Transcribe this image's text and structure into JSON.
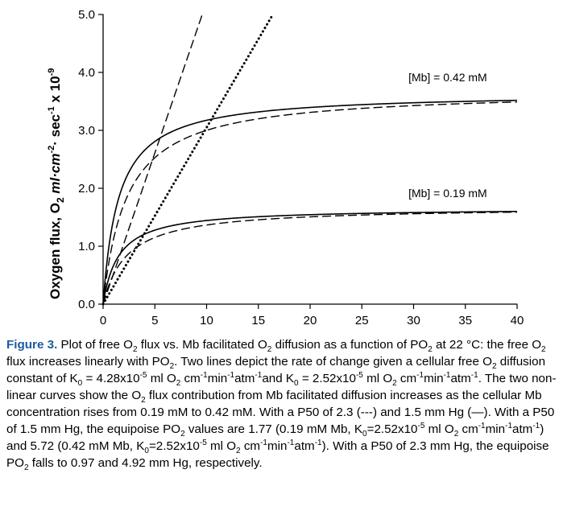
{
  "chart_data": {
    "type": "line",
    "xlabel": "",
    "ylabel": "Oxygen flux,  O2 ml·cm-2· sec-1  x 10-9",
    "ylabel_parts": {
      "main": "Oxygen flux,  O",
      "sub_2": "2",
      "italic_unit": " ml·cm",
      "sup_cm": "-2",
      "sec": "· sec",
      "sup_sec": "-1",
      "times": "  x 10",
      "sup_exp": "-9"
    },
    "xlim": [
      0,
      40
    ],
    "ylim": [
      0,
      5
    ],
    "x_ticks": [
      0,
      5,
      10,
      15,
      20,
      25,
      30,
      35,
      40
    ],
    "x_tick_labels": [
      "0",
      "5",
      "10",
      "15",
      "20",
      "25",
      "30",
      "35",
      "40"
    ],
    "y_ticks": [
      0,
      1,
      2,
      3,
      4,
      5
    ],
    "y_tick_labels": [
      "0.0",
      "1.0",
      "2.0",
      "3.0",
      "4.0",
      "5.0"
    ],
    "grid": false,
    "annotations": [
      {
        "text": "[Mb] = 0.42 mM",
        "x": 29.5,
        "y": 3.85
      },
      {
        "text": "[Mb] = 0.19 mM",
        "x": 29.5,
        "y": 1.85
      }
    ],
    "series": [
      {
        "style": "dashed",
        "kind": "linear",
        "slope": 0.522,
        "x": [
          0,
          9.58
        ],
        "y": [
          0,
          5.0
        ]
      },
      {
        "style": "dotted",
        "kind": "linear",
        "slope": 0.305,
        "x": [
          0,
          16.4
        ],
        "y": [
          0,
          5.0
        ]
      },
      {
        "style": "solid",
        "kind": "hyperbolic",
        "vmax": 3.65,
        "p50": 1.5,
        "mb": 0.42
      },
      {
        "style": "dashed",
        "kind": "hyperbolic",
        "vmax": 3.69,
        "p50": 2.3,
        "mb": 0.42
      },
      {
        "style": "solid",
        "kind": "hyperbolic",
        "vmax": 1.66,
        "p50": 1.5,
        "mb": 0.19
      },
      {
        "style": "dashed",
        "kind": "hyperbolic",
        "vmax": 1.68,
        "p50": 2.3,
        "mb": 0.19
      }
    ]
  },
  "caption": {
    "fig_label": "Figure 3.",
    "segments": [
      {
        "t": " Plot of free O"
      },
      {
        "sub": "2"
      },
      {
        "t": " flux vs. Mb facilitated O"
      },
      {
        "sub": "2"
      },
      {
        "t": " diffusion as a function of PO"
      },
      {
        "sub": "2"
      },
      {
        "t": " at 22 °C:  the free O"
      },
      {
        "sub": "2"
      },
      {
        "t": " flux increases linearly with PO"
      },
      {
        "sub": "2"
      },
      {
        "t": ".  Two lines depict the rate of change given a cellular free O"
      },
      {
        "sub": "2"
      },
      {
        "t": " diffusion constant of K"
      },
      {
        "sub": "0"
      },
      {
        "t": " = 4.28x10"
      },
      {
        "sup": "-5"
      },
      {
        "t": " ml O"
      },
      {
        "sub": "2"
      },
      {
        "t": " cm"
      },
      {
        "sup": "-1"
      },
      {
        "t": "min"
      },
      {
        "sup": "-1"
      },
      {
        "t": "atm"
      },
      {
        "sup": "-1"
      },
      {
        "t": "and K"
      },
      {
        "sub": "0"
      },
      {
        "t": " = 2.52x10"
      },
      {
        "sup": "-5"
      },
      {
        "t": " ml O"
      },
      {
        "sub": "2"
      },
      {
        "t": " cm"
      },
      {
        "sup": "-1"
      },
      {
        "t": "min"
      },
      {
        "sup": "-1"
      },
      {
        "t": "atm"
      },
      {
        "sup": "-1"
      },
      {
        "t": ".  The two non-linear curves show the O"
      },
      {
        "sub": "2"
      },
      {
        "t": " flux contribution from Mb facilitated diffusion increases as the cellular Mb concentration rises from 0.19 mM to 0.42 mM.  With a P50 of  2.3 (---) and 1.5 mm Hg (—).  With a P50 of 1.5 mm Hg, the equipoise PO"
      },
      {
        "sub": "2"
      },
      {
        "t": " values are 1.77 (0.19 mM Mb, K"
      },
      {
        "sub": "0"
      },
      {
        "t": "=2.52x10"
      },
      {
        "sup": "-5"
      },
      {
        "t": " ml O"
      },
      {
        "sub": "2"
      },
      {
        "t": " cm"
      },
      {
        "sup": "-1"
      },
      {
        "t": "min"
      },
      {
        "sup": "-1"
      },
      {
        "t": "atm"
      },
      {
        "sup": "-1"
      },
      {
        "t": ") and 5.72 (0.42 mM Mb, K"
      },
      {
        "sub": "0"
      },
      {
        "t": "=2.52x10"
      },
      {
        "sup": "-5"
      },
      {
        "t": " ml O"
      },
      {
        "sub": "2"
      },
      {
        "t": " cm"
      },
      {
        "sup": "-1"
      },
      {
        "t": "min"
      },
      {
        "sup": "-1"
      },
      {
        "t": "atm"
      },
      {
        "sup": "-1"
      },
      {
        "t": ").  With a P50 of 2.3 mm Hg, the equipoise PO"
      },
      {
        "sub": "2"
      },
      {
        "t": " falls to 0.97 and 4.92 mm Hg, respectively."
      }
    ]
  }
}
